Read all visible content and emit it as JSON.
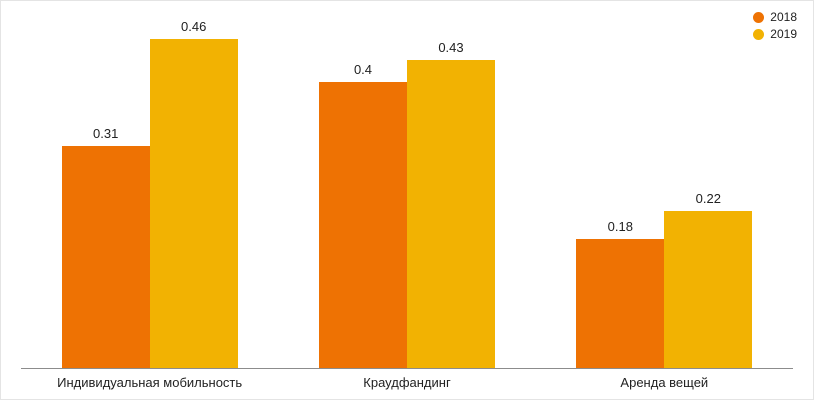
{
  "chart_data": {
    "type": "bar",
    "title": "",
    "xlabel": "",
    "ylabel": "",
    "categories": [
      "Индивидуальная мобильность",
      "Краудфандинг",
      "Аренда вещей"
    ],
    "series": [
      {
        "name": "2018",
        "color": "#ee7203",
        "values": [
          0.31,
          0.4,
          0.18
        ],
        "labels": [
          "0.31",
          "0.4",
          "0.18"
        ]
      },
      {
        "name": "2019",
        "color": "#f2b202",
        "values": [
          0.46,
          0.43,
          0.22
        ],
        "labels": [
          "0.46",
          "0.43",
          "0.22"
        ]
      }
    ],
    "ylim": [
      0,
      0.46
    ],
    "grid": false,
    "legend_position": "top-right",
    "value_labels_shown": true
  },
  "styles": {
    "axis_line_color": "#8c8c8c",
    "value_label_color": "#212121",
    "category_label_color": "#222222",
    "legend_text_color": "#222222",
    "background": "#ffffff"
  }
}
